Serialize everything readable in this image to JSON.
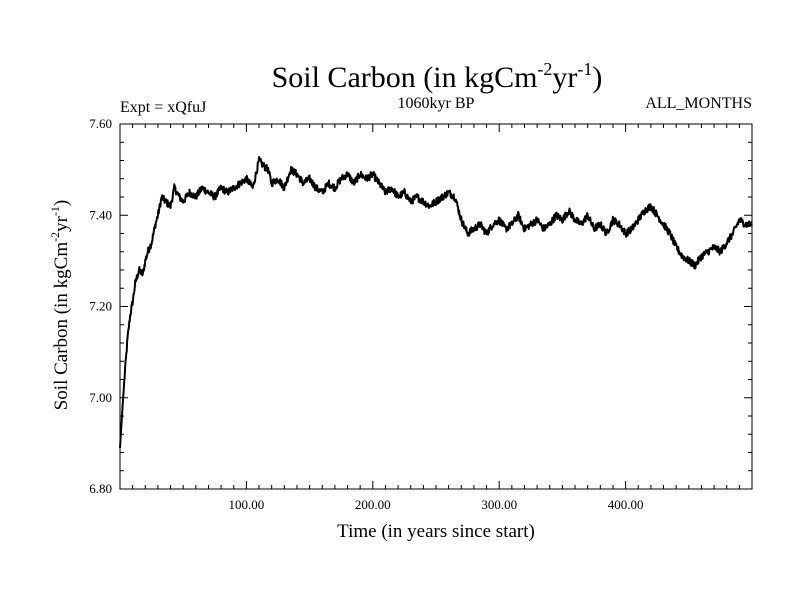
{
  "chart_data": {
    "type": "line",
    "title": {
      "main": "Soil Carbon (in kgCm",
      "sup1": "-2",
      "mid": "yr",
      "sup2": "-1",
      "end": ")"
    },
    "expt_label": "Expt = xQfuJ",
    "period_label": "1060kyr BP",
    "months_label": "ALL_MONTHS",
    "xlabel": "Time (in years since start)",
    "ylabel": {
      "main": "Soil Carbon (in kgCm",
      "sup1": "-2",
      "mid": "yr",
      "sup2": "-1",
      "end": ")"
    },
    "xlim": [
      0,
      500
    ],
    "ylim": [
      6.8,
      7.6
    ],
    "xticks": [
      {
        "value": 100,
        "label": "100.00"
      },
      {
        "value": 200,
        "label": "200.00"
      },
      {
        "value": 300,
        "label": "300.00"
      },
      {
        "value": 400,
        "label": "400.00"
      }
    ],
    "yticks": [
      {
        "value": 6.8,
        "label": "6.80"
      },
      {
        "value": 7.0,
        "label": "7.00"
      },
      {
        "value": 7.2,
        "label": "7.20"
      },
      {
        "value": 7.4,
        "label": "7.40"
      },
      {
        "value": 7.6,
        "label": "7.60"
      }
    ],
    "series": [
      {
        "name": "Soil Carbon",
        "x": [
          0,
          2,
          4,
          6,
          8,
          10,
          12,
          15,
          18,
          20,
          22,
          25,
          28,
          30,
          33,
          36,
          40,
          43,
          47,
          50,
          55,
          60,
          65,
          70,
          75,
          80,
          85,
          90,
          95,
          100,
          105,
          110,
          113,
          117,
          120,
          125,
          130,
          135,
          140,
          145,
          150,
          155,
          160,
          165,
          170,
          175,
          180,
          185,
          190,
          195,
          200,
          205,
          210,
          215,
          220,
          225,
          230,
          235,
          240,
          245,
          250,
          255,
          260,
          265,
          270,
          275,
          280,
          285,
          290,
          295,
          300,
          305,
          310,
          315,
          320,
          325,
          330,
          335,
          340,
          345,
          350,
          355,
          360,
          365,
          370,
          375,
          380,
          385,
          390,
          395,
          400,
          405,
          410,
          415,
          420,
          425,
          430,
          435,
          440,
          445,
          450,
          455,
          460,
          465,
          470,
          475,
          480,
          485,
          490,
          495,
          500
        ],
        "values": [
          6.89,
          6.98,
          7.06,
          7.13,
          7.18,
          7.21,
          7.25,
          7.28,
          7.27,
          7.3,
          7.32,
          7.34,
          7.38,
          7.4,
          7.44,
          7.43,
          7.42,
          7.46,
          7.44,
          7.43,
          7.45,
          7.44,
          7.46,
          7.45,
          7.44,
          7.46,
          7.45,
          7.46,
          7.47,
          7.48,
          7.46,
          7.52,
          7.51,
          7.5,
          7.47,
          7.48,
          7.46,
          7.5,
          7.49,
          7.47,
          7.48,
          7.46,
          7.45,
          7.47,
          7.46,
          7.48,
          7.49,
          7.47,
          7.49,
          7.48,
          7.49,
          7.47,
          7.45,
          7.46,
          7.44,
          7.45,
          7.43,
          7.44,
          7.43,
          7.42,
          7.43,
          7.44,
          7.45,
          7.44,
          7.39,
          7.36,
          7.37,
          7.38,
          7.36,
          7.38,
          7.39,
          7.37,
          7.38,
          7.4,
          7.37,
          7.38,
          7.39,
          7.37,
          7.38,
          7.4,
          7.39,
          7.41,
          7.39,
          7.38,
          7.4,
          7.37,
          7.38,
          7.36,
          7.39,
          7.38,
          7.36,
          7.37,
          7.39,
          7.41,
          7.42,
          7.4,
          7.38,
          7.36,
          7.33,
          7.31,
          7.3,
          7.29,
          7.31,
          7.32,
          7.33,
          7.32,
          7.34,
          7.36,
          7.39,
          7.38,
          7.38
        ]
      }
    ]
  }
}
